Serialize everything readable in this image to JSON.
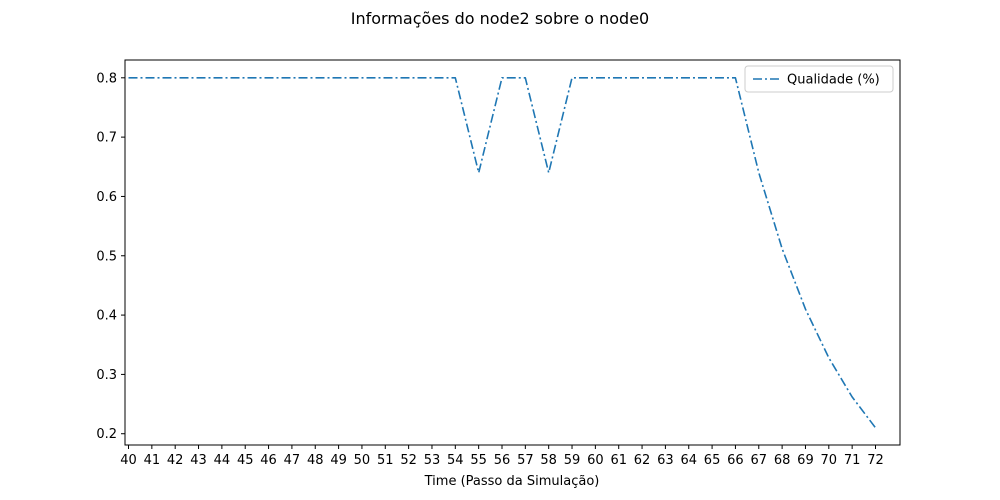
{
  "chart_data": {
    "type": "line",
    "title": "Informações do node2 sobre o node0",
    "xlabel": "Time (Passo da Simulação)",
    "ylabel": "",
    "x": [
      40,
      41,
      42,
      43,
      44,
      45,
      46,
      47,
      48,
      49,
      50,
      51,
      52,
      53,
      54,
      55,
      56,
      57,
      58,
      59,
      60,
      61,
      62,
      63,
      64,
      65,
      66,
      67,
      68,
      69,
      70,
      71,
      72
    ],
    "series": [
      {
        "name": "Qualidade (%)",
        "color": "#1f77b4",
        "line_style": "dash-dot",
        "values": [
          0.8,
          0.8,
          0.8,
          0.8,
          0.8,
          0.8,
          0.8,
          0.8,
          0.8,
          0.8,
          0.8,
          0.8,
          0.8,
          0.8,
          0.8,
          0.64,
          0.8,
          0.8,
          0.64,
          0.8,
          0.8,
          0.8,
          0.8,
          0.8,
          0.8,
          0.8,
          0.8,
          0.64,
          0.512,
          0.41,
          0.328,
          0.262,
          0.21
        ]
      }
    ],
    "xlim": [
      39.85,
      73.05
    ],
    "ylim": [
      0.181,
      0.83
    ],
    "yticks": [
      0.2,
      0.3,
      0.4,
      0.5,
      0.6,
      0.7,
      0.8
    ],
    "legend_position": "top-right",
    "grid": false
  }
}
